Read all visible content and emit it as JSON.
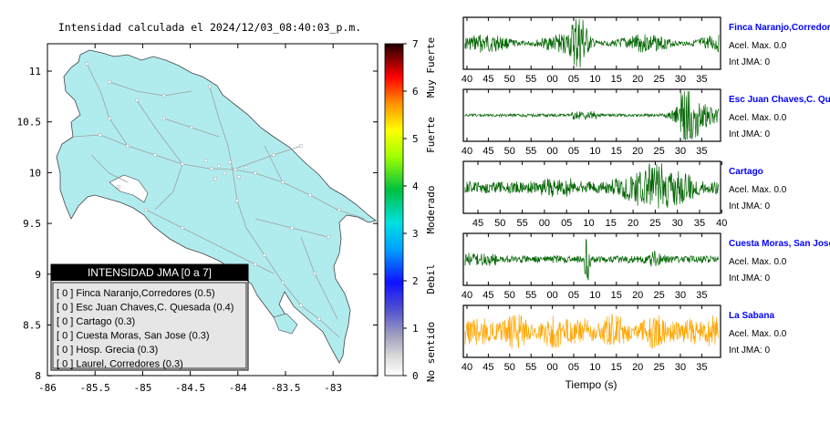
{
  "title": "Intensidad calculada el 2024/12/03_08:40:03_p.m.",
  "map": {
    "lat_ticks": [
      "11",
      "10.5",
      "10",
      "9.5",
      "9",
      "8.5",
      "8"
    ],
    "lon_ticks": [
      "-86",
      "-85.5",
      "-85",
      "-84.5",
      "-84",
      "-83.5",
      "-83"
    ],
    "land_color": "#b0ecee",
    "sea_color": "#ffffff"
  },
  "colorbar": {
    "ticks": [
      "0",
      "1",
      "2",
      "3",
      "4",
      "5",
      "6",
      "7"
    ],
    "labels": [
      "No sentido",
      "Debil",
      "Moderado",
      "Fuerte",
      "Muy Fuerte"
    ]
  },
  "legend": {
    "title": "INTENSIDAD JMA [0 a 7]",
    "items": [
      "[ 0 ]  Finca Naranjo,Corredores (0.5)",
      "[ 0 ]  Esc Juan Chaves,C. Quesada (0.4)",
      "[ 0 ]  Cartago (0.3)",
      "[ 0 ]  Cuesta Moras, San Jose (0.3)",
      "[ 0 ]  Hosp. Grecia (0.3)",
      "[ 0 ]  Laurel, Corredores (0.3)"
    ]
  },
  "chart_data": [
    {
      "type": "line",
      "title": "Finca Naranjo,Corredores",
      "color": "#006400",
      "x_ticks": [
        "40",
        "45",
        "50",
        "55",
        "00",
        "05",
        "10",
        "15",
        "20",
        "25",
        "30",
        "35"
      ],
      "info": [
        "Acel. Max. 0.0",
        "Int JMA: 0"
      ]
    },
    {
      "type": "line",
      "title": "Esc Juan Chaves,C. Quesada",
      "color": "#006400",
      "x_ticks": [
        "40",
        "45",
        "50",
        "55",
        "00",
        "05",
        "10",
        "15",
        "20",
        "25",
        "30",
        "35"
      ],
      "info": [
        "Acel. Max. 0.0",
        "Int JMA: 0"
      ]
    },
    {
      "type": "line",
      "title": "Cartago",
      "color": "#006400",
      "x_ticks": [
        "45",
        "50",
        "55",
        "00",
        "05",
        "10",
        "15",
        "20",
        "25",
        "30",
        "35",
        "40"
      ],
      "info": [
        "Acel. Max. 0.0",
        "Int JMA: 0"
      ]
    },
    {
      "type": "line",
      "title": "Cuesta Moras, San Jose",
      "color": "#006400",
      "x_ticks": [
        "40",
        "45",
        "50",
        "55",
        "00",
        "05",
        "10",
        "15",
        "20",
        "25",
        "30",
        "35"
      ],
      "info": [
        "Acel. Max. 0.0",
        "Int JMA: 0"
      ]
    },
    {
      "type": "line",
      "title": "La Sabana",
      "color": "#ffa500",
      "x_ticks": [
        "40",
        "45",
        "50",
        "55",
        "00",
        "05",
        "10",
        "15",
        "20",
        "25",
        "30",
        "35"
      ],
      "info": [
        "Acel. Max. 0.0",
        "Int JMA: 0"
      ],
      "xlabel": "Tiempo (s)"
    }
  ]
}
